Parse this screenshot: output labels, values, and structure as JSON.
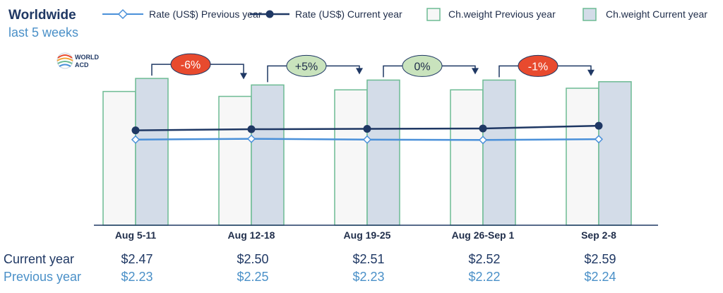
{
  "colors": {
    "title": "#1f3864",
    "subtitle": "#4a90c8",
    "prev_bar_fill": "#f7f7f7",
    "prev_bar_stroke": "#6dbb94",
    "cur_bar_fill": "#d3dce8",
    "cur_bar_stroke": "#6dbb94",
    "prev_line": "#4a90d9",
    "cur_line": "#1f3864",
    "pill_negative": "#e84a2e",
    "pill_positive": "#c9e3bd",
    "connector": "#1f3864"
  },
  "logo": {
    "icon": "world-acd-globe-icon",
    "line1": "WORLD",
    "line2": "ACD"
  },
  "chart_data": {
    "type": "bar",
    "title": "Worldwide",
    "subtitle": "last 5 weeks",
    "categories": [
      "Aug 5-11",
      "Aug 12-18",
      "Aug 19-25",
      "Aug 26-Sep 1",
      "Sep 2-8"
    ],
    "series": [
      {
        "name": "Ch.weight Previous year",
        "kind": "bar",
        "values": [
          0.82,
          0.79,
          0.83,
          0.83,
          0.84
        ]
      },
      {
        "name": "Ch.weight Current year",
        "kind": "bar",
        "values": [
          0.9,
          0.86,
          0.89,
          0.89,
          0.88
        ]
      },
      {
        "name": "Rate (US$) Previous year",
        "kind": "line",
        "values": [
          2.23,
          2.25,
          2.23,
          2.22,
          2.24
        ]
      },
      {
        "name": "Rate (US$) Current year",
        "kind": "line",
        "values": [
          2.47,
          2.5,
          2.51,
          2.52,
          2.59
        ]
      }
    ],
    "legend": [
      "Rate (US$) Previous year",
      "Rate (US$) Current year",
      "Ch.weight Previous year",
      "Ch.weight Current year"
    ],
    "legend_position": "top",
    "weight_change_labels": [
      "-6%",
      "+5%",
      "0%",
      "-1%"
    ],
    "weight_change_signs": [
      "negative",
      "positive",
      "positive",
      "negative"
    ],
    "rate_ylim": [
      0,
      5.7
    ],
    "weight_ylim": [
      0,
      1
    ],
    "rows": {
      "current_label": "Current year",
      "previous_label": "Previous year",
      "current_values": [
        "$2.47",
        "$2.50",
        "$2.51",
        "$2.52",
        "$2.59"
      ],
      "previous_values": [
        "$2.23",
        "$2.25",
        "$2.23",
        "$2.22",
        "$2.24"
      ]
    }
  }
}
